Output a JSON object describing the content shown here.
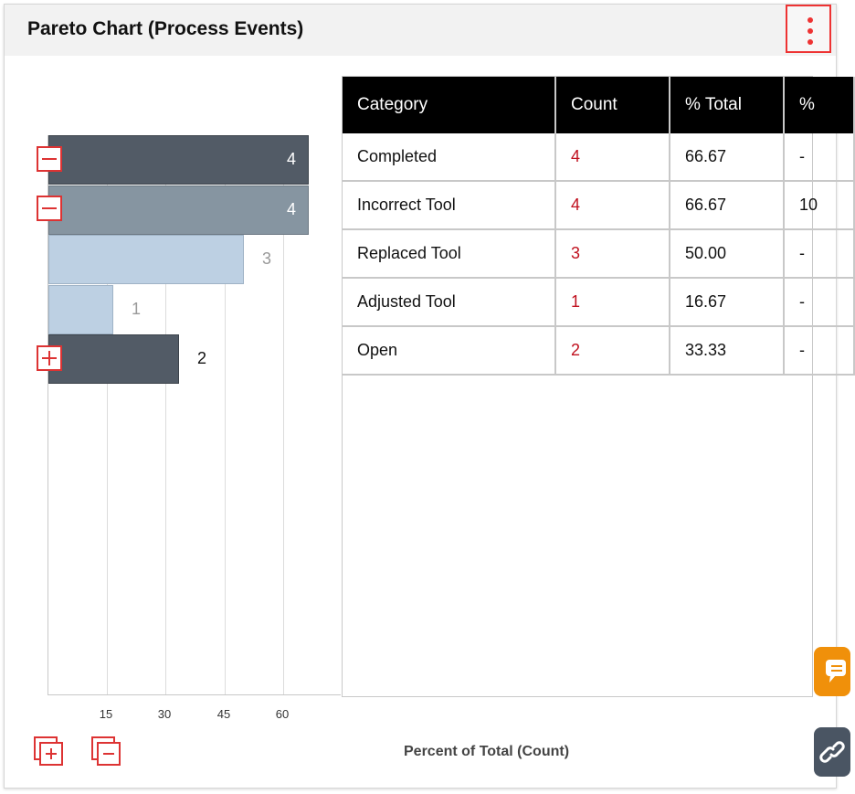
{
  "panel": {
    "title": "Pareto Chart (Process Events)"
  },
  "colors": {
    "accent": "#e33333",
    "count_text": "#c0101e",
    "bar_dark": "#525b66",
    "bar_mid": "#8695a1",
    "bar_light": "#bdd0e3",
    "table_header": "#000000",
    "chat_button": "#f0900a",
    "link_button": "#4a5563"
  },
  "chart_data": {
    "type": "bar",
    "orientation": "horizontal",
    "categories": [
      "Completed",
      "Incorrect Tool",
      "Replaced Tool",
      "Adjusted Tool",
      "Open"
    ],
    "values": [
      66.67,
      66.67,
      50.0,
      16.67,
      33.33
    ],
    "bar_labels": [
      "4",
      "4",
      "3",
      "1",
      "2"
    ],
    "xticks": [
      "15",
      "30",
      "45",
      "60"
    ],
    "xlabel": "Percent of Total (Count)",
    "xlim": [
      0,
      75
    ],
    "grid": true
  },
  "table": {
    "columns": [
      "Category",
      "Count",
      "% Total",
      "%"
    ],
    "rows": [
      {
        "category": "Completed",
        "count": "4",
        "pct_total": "66.67",
        "pct": "-"
      },
      {
        "category": "Incorrect Tool",
        "count": "4",
        "pct_total": "66.67",
        "pct": "10"
      },
      {
        "category": "Replaced Tool",
        "count": "3",
        "pct_total": "50.00",
        "pct": "-"
      },
      {
        "category": "Adjusted Tool",
        "count": "1",
        "pct_total": "16.67",
        "pct": "-"
      },
      {
        "category": "Open",
        "count": "2",
        "pct_total": "33.33",
        "pct": "-"
      }
    ]
  },
  "icons": {
    "menu": "kebab-menu-icon",
    "expand": "plus-box-icon",
    "collapse": "minus-box-icon",
    "expand_all": "expand-all-icon",
    "collapse_all": "collapse-all-icon",
    "chat": "chat-icon",
    "link": "link-icon"
  }
}
